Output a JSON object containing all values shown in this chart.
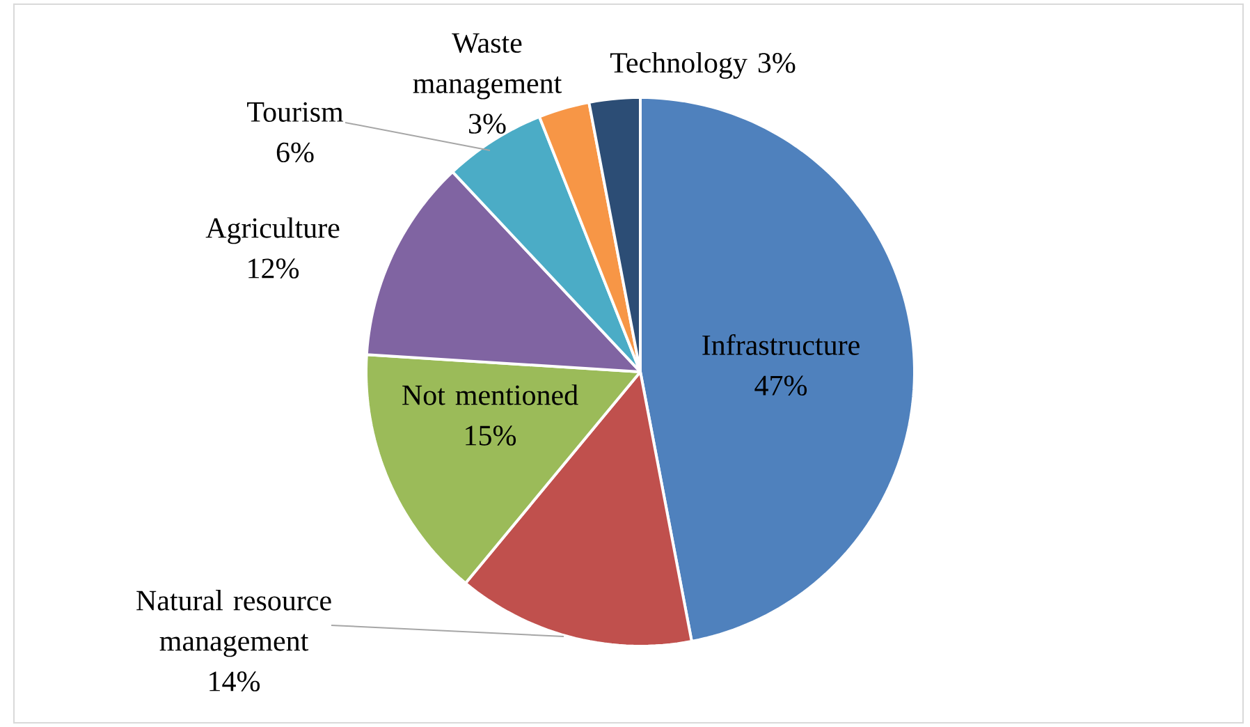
{
  "chart_data": {
    "type": "pie",
    "categories": [
      "Infrastructure",
      "Natural resource management",
      "Not mentioned",
      "Agriculture",
      "Tourism",
      "Waste management",
      "Technology"
    ],
    "values": [
      47,
      14,
      15,
      12,
      6,
      3,
      3
    ],
    "value_labels": [
      "47%",
      "14%",
      "15%",
      "12%",
      "6%",
      "3%",
      "3%"
    ],
    "colors": [
      "#4f81bd",
      "#c0504d",
      "#9bbb59",
      "#8064a2",
      "#4bacc6",
      "#f79646",
      "#2c4d75"
    ]
  }
}
